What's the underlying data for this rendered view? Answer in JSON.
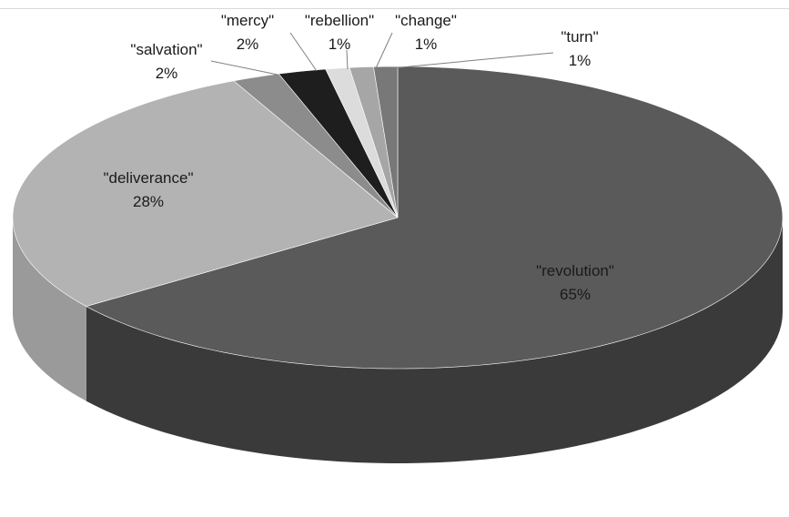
{
  "chart_data": {
    "type": "pie",
    "style": "3d-exploded-none",
    "categories": [
      "\"revolution\"",
      "\"deliverance\"",
      "\"salvation\"",
      "\"mercy\"",
      "\"rebellion\"",
      "\"change\"",
      "\"turn\""
    ],
    "values": [
      65,
      28,
      2,
      2,
      1,
      1,
      1
    ],
    "labels": [
      "65%",
      "28%",
      "2%",
      "2%",
      "1%",
      "1%",
      "1%"
    ],
    "colors": [
      "#5a5a5a",
      "#b3b3b3",
      "#8c8c8c",
      "#1e1e1e",
      "#dcdcdc",
      "#a6a6a6",
      "#787878"
    ],
    "side_colors": [
      "#3a3a3a",
      "#9a9a9a",
      "#6e6e6e",
      "#111111",
      "#bdbdbd",
      "#8a8a8a",
      "#5e5e5e"
    ],
    "legend": "none",
    "frame_color": "#d9d9d9"
  }
}
